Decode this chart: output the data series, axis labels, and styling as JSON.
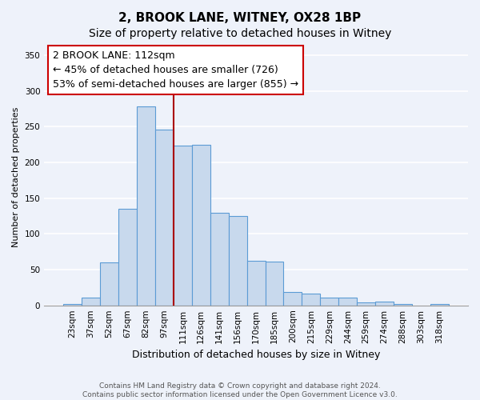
{
  "title": "2, BROOK LANE, WITNEY, OX28 1BP",
  "subtitle": "Size of property relative to detached houses in Witney",
  "xlabel": "Distribution of detached houses by size in Witney",
  "ylabel": "Number of detached properties",
  "bar_labels": [
    "23sqm",
    "37sqm",
    "52sqm",
    "67sqm",
    "82sqm",
    "97sqm",
    "111sqm",
    "126sqm",
    "141sqm",
    "156sqm",
    "170sqm",
    "185sqm",
    "200sqm",
    "215sqm",
    "229sqm",
    "244sqm",
    "259sqm",
    "274sqm",
    "288sqm",
    "303sqm",
    "318sqm"
  ],
  "bar_values": [
    2,
    11,
    60,
    135,
    278,
    246,
    223,
    225,
    130,
    125,
    62,
    61,
    19,
    16,
    11,
    11,
    4,
    5,
    2,
    0,
    2
  ],
  "bar_color": "#c8d9ed",
  "bar_edge_color": "#5b9bd5",
  "background_color": "#eef2fa",
  "grid_color": "#ffffff",
  "ylim": [
    0,
    360
  ],
  "yticks": [
    0,
    50,
    100,
    150,
    200,
    250,
    300,
    350
  ],
  "vline_x_index": 6,
  "vline_color": "#aa0000",
  "annotation_line1": "2 BROOK LANE: 112sqm",
  "annotation_line2": "← 45% of detached houses are smaller (726)",
  "annotation_line3": "53% of semi-detached houses are larger (855) →",
  "footer_line1": "Contains HM Land Registry data © Crown copyright and database right 2024.",
  "footer_line2": "Contains public sector information licensed under the Open Government Licence v3.0.",
  "title_fontsize": 11,
  "subtitle_fontsize": 10,
  "xlabel_fontsize": 9,
  "ylabel_fontsize": 8,
  "tick_fontsize": 7.5,
  "annotation_fontsize": 9,
  "footer_fontsize": 6.5
}
